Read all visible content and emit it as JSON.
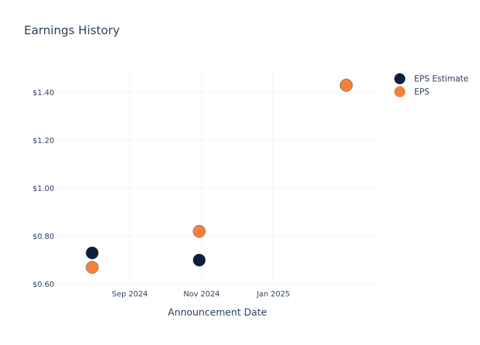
{
  "chart_data": {
    "type": "scatter",
    "title": "Earnings History",
    "xlabel": "Announcement Date",
    "ylabel": "",
    "x_axis": {
      "type": "date",
      "range": [
        "2024-07-01",
        "2025-04-01"
      ],
      "ticks": [
        {
          "date": "2024-09-01",
          "label": "Sep 2024"
        },
        {
          "date": "2024-11-01",
          "label": "Nov 2024"
        },
        {
          "date": "2025-01-01",
          "label": "Jan 2025"
        }
      ]
    },
    "y_axis": {
      "range": [
        0.6,
        1.5
      ],
      "ticks": [
        {
          "value": 0.6,
          "label": "$0.60"
        },
        {
          "value": 0.8,
          "label": "$0.80"
        },
        {
          "value": 1.0,
          "label": "$1.00"
        },
        {
          "value": 1.2,
          "label": "$1.20"
        },
        {
          "value": 1.4,
          "label": "$1.40"
        }
      ]
    },
    "grid": true,
    "legend_position": "top-right",
    "series": [
      {
        "name": "EPS Estimate",
        "color": "#0d1f3c",
        "points": [
          {
            "x": "2024-07-31",
            "y": 0.73
          },
          {
            "x": "2024-10-30",
            "y": 0.7
          },
          {
            "x": "2025-03-04",
            "y": 1.43
          }
        ]
      },
      {
        "name": "EPS",
        "color": "#f4823a",
        "points": [
          {
            "x": "2024-07-31",
            "y": 0.67
          },
          {
            "x": "2024-10-30",
            "y": 0.82
          },
          {
            "x": "2025-03-04",
            "y": 1.43
          }
        ]
      }
    ]
  }
}
